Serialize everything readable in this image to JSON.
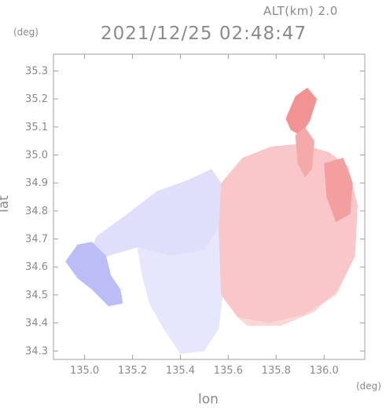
{
  "chart_data": {
    "type": "heatmap",
    "title": "2021/12/25 02:48:47",
    "altitude_label": "ALT(km) 2.0",
    "xlabel": "lon",
    "ylabel": "lat",
    "x_unit": "(deg)",
    "y_unit": "(deg)",
    "xlim": [
      134.87,
      136.17
    ],
    "ylim": [
      34.27,
      35.36
    ],
    "x_ticks": [
      135.0,
      135.2,
      135.4,
      135.6,
      135.8,
      136.0
    ],
    "x_tick_labels": [
      "135.0",
      "135.2",
      "135.4",
      "135.6",
      "135.8",
      "136.0"
    ],
    "y_ticks": [
      34.3,
      34.4,
      34.5,
      34.6,
      34.7,
      34.8,
      34.9,
      35.0,
      35.1,
      35.2,
      35.3
    ],
    "y_tick_labels": [
      "34.3",
      "34.4",
      "34.5",
      "34.6",
      "34.7",
      "34.8",
      "34.9",
      "35.0",
      "35.1",
      "35.2",
      "35.3"
    ],
    "colors": {
      "negative": "#8c8cf0",
      "positive": "#f07a7a",
      "neutral": "#ffffff",
      "axis": "#9a9a9a",
      "text": "#8a8a8a"
    },
    "regions": [
      {
        "name": "northwest-negative",
        "sign": "negative",
        "intensity": 0.28,
        "polygon": [
          [
            135.0,
            34.61
          ],
          [
            135.05,
            34.71
          ],
          [
            135.18,
            34.79
          ],
          [
            135.3,
            34.87
          ],
          [
            135.43,
            34.91
          ],
          [
            135.53,
            34.95
          ],
          [
            135.57,
            34.9
          ],
          [
            135.56,
            34.74
          ],
          [
            135.5,
            34.66
          ],
          [
            135.36,
            34.64
          ],
          [
            135.22,
            34.67
          ],
          [
            135.1,
            34.64
          ]
        ]
      },
      {
        "name": "southwest-negative",
        "sign": "negative",
        "intensity": 0.22,
        "polygon": [
          [
            135.22,
            34.67
          ],
          [
            135.36,
            34.64
          ],
          [
            135.5,
            34.66
          ],
          [
            135.56,
            34.74
          ],
          [
            135.58,
            34.52
          ],
          [
            135.56,
            34.38
          ],
          [
            135.5,
            34.3
          ],
          [
            135.4,
            34.29
          ],
          [
            135.33,
            34.38
          ],
          [
            135.27,
            34.47
          ],
          [
            135.24,
            34.57
          ]
        ]
      },
      {
        "name": "western-peninsula-negative",
        "sign": "negative",
        "intensity": 0.58,
        "polygon": [
          [
            134.92,
            34.62
          ],
          [
            134.97,
            34.68
          ],
          [
            135.03,
            34.69
          ],
          [
            135.09,
            34.64
          ],
          [
            135.11,
            34.57
          ],
          [
            135.15,
            34.52
          ],
          [
            135.16,
            34.47
          ],
          [
            135.1,
            34.46
          ],
          [
            135.03,
            34.52
          ],
          [
            134.97,
            34.56
          ]
        ]
      },
      {
        "name": "central-positive",
        "sign": "positive",
        "intensity": 0.42,
        "polygon": [
          [
            135.57,
            34.9
          ],
          [
            135.66,
            34.99
          ],
          [
            135.78,
            35.03
          ],
          [
            135.9,
            35.04
          ],
          [
            136.02,
            35.01
          ],
          [
            136.1,
            34.96
          ],
          [
            136.14,
            34.82
          ],
          [
            136.13,
            34.64
          ],
          [
            136.05,
            34.5
          ],
          [
            135.92,
            34.43
          ],
          [
            135.77,
            34.4
          ],
          [
            135.64,
            34.42
          ],
          [
            135.57,
            34.5
          ],
          [
            135.56,
            34.74
          ]
        ]
      },
      {
        "name": "southeast-positive",
        "sign": "positive",
        "intensity": 0.3,
        "polygon": [
          [
            135.64,
            34.42
          ],
          [
            135.77,
            34.4
          ],
          [
            135.92,
            34.43
          ],
          [
            136.05,
            34.5
          ],
          [
            136.1,
            34.6
          ],
          [
            136.06,
            34.52
          ],
          [
            135.96,
            34.44
          ],
          [
            135.82,
            34.39
          ],
          [
            135.68,
            34.39
          ]
        ]
      },
      {
        "name": "northeast-strong-positive",
        "sign": "positive",
        "intensity": 0.82,
        "polygon": [
          [
            135.84,
            35.13
          ],
          [
            135.88,
            35.21
          ],
          [
            135.93,
            35.24
          ],
          [
            135.97,
            35.2
          ],
          [
            135.94,
            35.12
          ],
          [
            135.9,
            35.07
          ],
          [
            135.86,
            35.09
          ]
        ]
      },
      {
        "name": "east-strong-positive",
        "sign": "positive",
        "intensity": 0.72,
        "polygon": [
          [
            136.0,
            34.97
          ],
          [
            136.08,
            34.99
          ],
          [
            136.12,
            34.9
          ],
          [
            136.11,
            34.79
          ],
          [
            136.05,
            34.76
          ],
          [
            136.01,
            34.85
          ]
        ]
      },
      {
        "name": "north-positive-streak",
        "sign": "positive",
        "intensity": 0.64,
        "polygon": [
          [
            135.88,
            35.07
          ],
          [
            135.92,
            35.1
          ],
          [
            135.96,
            35.05
          ],
          [
            135.95,
            34.95
          ],
          [
            135.92,
            34.92
          ],
          [
            135.89,
            34.97
          ]
        ]
      }
    ]
  }
}
